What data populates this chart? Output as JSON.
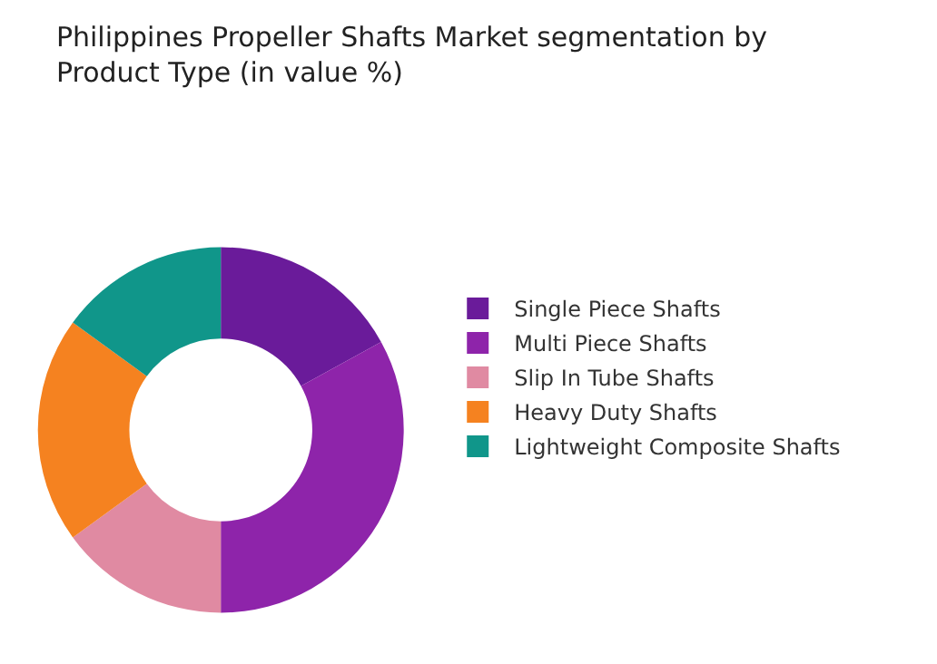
{
  "chart_data": {
    "type": "donut",
    "title": "Philippines Propeller Shafts Market segmentation by Product Type (in value %)",
    "categories": [
      "Single Piece Shafts",
      "Multi Piece Shafts",
      "Slip In Tube Shafts",
      "Heavy Duty Shafts",
      "Lightweight Composite Shafts"
    ],
    "values": [
      17,
      33,
      15,
      20,
      15
    ],
    "colors": [
      "#6a1b9a",
      "#8e24aa",
      "#e08aa2",
      "#f58220",
      "#10968a"
    ],
    "legend": "right"
  }
}
